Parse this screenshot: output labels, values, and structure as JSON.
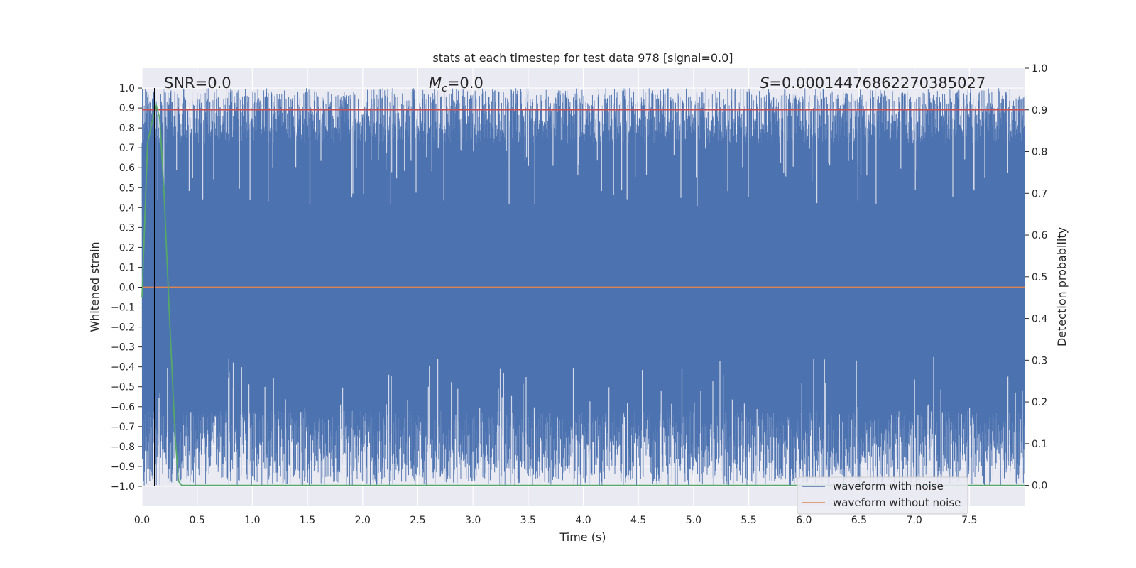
{
  "chart_data": {
    "type": "line",
    "title": "stats at each timestep for test data 978 [signal=0.0]",
    "xlabel": "Time (s)",
    "ylabel": "Whitened strain",
    "y2label": "Detection probability",
    "xlim": [
      0.0,
      8.0
    ],
    "ylim": [
      -1.1,
      1.1
    ],
    "y2lim": [
      -0.05,
      1.0
    ],
    "xticks": [
      "0.0",
      "0.5",
      "1.0",
      "1.5",
      "2.0",
      "2.5",
      "3.0",
      "3.5",
      "4.0",
      "4.5",
      "5.0",
      "5.5",
      "6.0",
      "6.5",
      "7.0",
      "7.5"
    ],
    "yticks": [
      "1.0",
      "0.9",
      "0.8",
      "0.7",
      "0.6",
      "0.5",
      "0.4",
      "0.3",
      "0.2",
      "0.1",
      "0.0",
      "−0.1",
      "−0.2",
      "−0.3",
      "−0.4",
      "−0.5",
      "−0.6",
      "−0.7",
      "−0.8",
      "−0.9",
      "−1.0"
    ],
    "y2ticks": [
      "1.0",
      "0.9",
      "0.8",
      "0.7",
      "0.6",
      "0.5",
      "0.4",
      "0.3",
      "0.2",
      "0.1",
      "0.0"
    ],
    "grid": true,
    "legend_position": "lower-right",
    "annotations": {
      "snr": "SNR=0.0",
      "mc_symbol": "M",
      "mc_sub": "c",
      "mc_value": "=0.0",
      "s_symbol": "S",
      "s_value": "=0.00014476862270385027"
    },
    "series": [
      {
        "name": "waveform with noise",
        "color": "#4c72b0",
        "axis": "left",
        "description_values": "whitened noise filling the range -1.0 to 1.0 across 0 to 8 s"
      },
      {
        "name": "waveform without noise",
        "color": "#dd8452",
        "axis": "left",
        "x": [
          0.0,
          8.0
        ],
        "y": [
          0.0,
          0.0
        ]
      },
      {
        "color": "#55a868",
        "axis": "right",
        "x": [
          0.0,
          0.05,
          0.1,
          0.13,
          0.16,
          0.2,
          0.25,
          0.3,
          0.33,
          0.36,
          0.4,
          8.0
        ],
        "y": [
          0.45,
          0.82,
          0.88,
          0.91,
          0.88,
          0.7,
          0.4,
          0.12,
          0.01,
          0.0,
          0.0,
          0.0
        ]
      },
      {
        "color": "#c44e52",
        "axis": "right",
        "x": [
          0.0,
          8.0
        ],
        "y": [
          0.9,
          0.9
        ]
      }
    ],
    "vertical_marker_x": 0.115
  },
  "colors": {
    "background": "#eaeaf2",
    "grid": "#ffffff",
    "noise": "#4c72b0",
    "clean": "#dd8452",
    "probability": "#55a868",
    "threshold": "#c44e52",
    "marker": "#000000"
  }
}
